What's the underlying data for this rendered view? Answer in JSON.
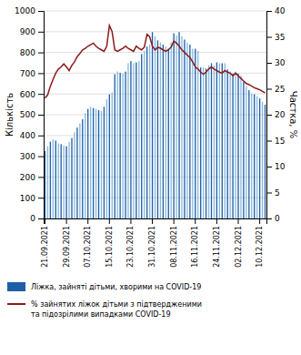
{
  "chart_data": {
    "type": "bar",
    "y_label": "Кількість",
    "y2_label": "Частка, %",
    "categories": [
      "21.09.2021",
      null,
      null,
      null,
      null,
      null,
      null,
      null,
      "29.09.2021",
      null,
      null,
      null,
      null,
      null,
      null,
      null,
      "07.10.2021",
      null,
      null,
      null,
      null,
      null,
      null,
      null,
      "15.10.2021",
      null,
      null,
      null,
      null,
      null,
      null,
      null,
      "23.10.2021",
      null,
      null,
      null,
      null,
      null,
      null,
      null,
      "31.10.2021",
      null,
      null,
      null,
      null,
      null,
      null,
      null,
      "08.11.2021",
      null,
      null,
      null,
      null,
      null,
      null,
      null,
      "16.11.2021",
      null,
      null,
      null,
      null,
      null,
      null,
      null,
      "24.11.2021",
      null,
      null,
      null,
      null,
      null,
      null,
      null,
      "02.12.2021",
      null,
      null,
      null,
      null,
      null,
      null,
      null,
      "10.12.2021",
      null,
      null
    ],
    "series": [
      {
        "name": "Ліжка, зайняті дітьми, хворими на COVID-19",
        "type": "bar",
        "colors": [
          "#1f5fa6",
          "#89b8e0",
          "#1f5fa6",
          "#89b8e0",
          "#1f5fa6",
          "#89b8e0",
          "#1f5fa6",
          "#89b8e0",
          "#1f5fa6",
          "#89b8e0",
          "#1f5fa6",
          "#89b8e0",
          "#1f5fa6",
          "#89b8e0",
          "#1f5fa6",
          "#89b8e0",
          "#1f5fa6",
          "#89b8e0",
          "#1f5fa6",
          "#89b8e0",
          "#1f5fa6",
          "#89b8e0",
          "#1f5fa6",
          "#89b8e0",
          "#1f5fa6",
          "#89b8e0",
          "#1f5fa6",
          "#89b8e0",
          "#1f5fa6",
          "#89b8e0",
          "#1f5fa6",
          "#89b8e0",
          "#1f5fa6",
          "#89b8e0",
          "#1f5fa6",
          "#89b8e0",
          "#1f5fa6",
          "#89b8e0",
          "#1f5fa6",
          "#89b8e0",
          "#1f5fa6",
          "#89b8e0",
          "#1f5fa6",
          "#89b8e0",
          "#1f5fa6",
          "#89b8e0",
          "#1f5fa6",
          "#89b8e0",
          "#1f5fa6",
          "#89b8e0",
          "#1f5fa6",
          "#89b8e0",
          "#1f5fa6",
          "#89b8e0",
          "#1f5fa6",
          "#89b8e0",
          "#1f5fa6",
          "#89b8e0",
          "#1f5fa6",
          "#89b8e0",
          "#1f5fa6",
          "#89b8e0",
          "#1f5fa6",
          "#89b8e0",
          "#1f5fa6",
          "#89b8e0",
          "#1f5fa6",
          "#89b8e0",
          "#1f5fa6",
          "#89b8e0",
          "#1f5fa6",
          "#89b8e0",
          "#1f5fa6",
          "#89b8e0",
          "#1f5fa6",
          "#89b8e0",
          "#1f5fa6",
          "#89b8e0",
          "#1f5fa6",
          "#89b8e0",
          "#1f5fa6",
          "#89b8e0",
          "#1f5fa6"
        ],
        "values": [
          325,
          348,
          370,
          382,
          375,
          362,
          358,
          352,
          348,
          368,
          388,
          415,
          438,
          458,
          478,
          508,
          528,
          538,
          532,
          528,
          522,
          518,
          538,
          575,
          598,
          608,
          695,
          708,
          702,
          698,
          708,
          748,
          758,
          748,
          752,
          758,
          792,
          808,
          828,
          838,
          898,
          878,
          858,
          848,
          838,
          828,
          818,
          848,
          892,
          882,
          898,
          878,
          862,
          848,
          838,
          818,
          818,
          808,
          728,
          728,
          722,
          738,
          748,
          738,
          752,
          748,
          748,
          748,
          718,
          708,
          698,
          708,
          698,
          688,
          658,
          638,
          618,
          602,
          598,
          588,
          578,
          562,
          548
        ]
      },
      {
        "name": "% зайнятих ліжок дітьми з підтвердженими\nта підозрілими випадками COVID-19",
        "type": "line",
        "axis": "y2",
        "color": "#8b1a1a",
        "values": [
          23.2,
          23.8,
          25.5,
          26.8,
          28.0,
          28.8,
          29.2,
          29.8,
          29.2,
          28.5,
          29.5,
          30.2,
          31.2,
          31.8,
          32.5,
          32.8,
          33.2,
          33.5,
          33.8,
          33.2,
          32.8,
          32.5,
          32.2,
          33.2,
          37.2,
          36.0,
          32.5,
          32.2,
          32.5,
          32.8,
          33.2,
          32.8,
          32.5,
          32.2,
          33.2,
          32.8,
          32.5,
          33.0,
          35.5,
          35.0,
          33.2,
          32.5,
          33.0,
          32.8,
          32.5,
          32.2,
          32.5,
          33.0,
          34.2,
          33.8,
          33.2,
          32.5,
          32.0,
          31.5,
          31.0,
          30.2,
          29.2,
          28.8,
          28.2,
          27.8,
          28.2,
          28.8,
          29.2,
          28.8,
          28.5,
          28.2,
          28.0,
          28.5,
          28.2,
          28.0,
          27.5,
          28.0,
          27.5,
          27.0,
          26.5,
          26.0,
          25.8,
          25.5,
          25.2,
          25.0,
          24.8,
          24.5,
          24.2
        ]
      }
    ],
    "ylim": [
      0,
      1000
    ],
    "yticks": [
      0,
      100,
      200,
      300,
      400,
      500,
      600,
      700,
      800,
      900,
      1000
    ],
    "y2lim": [
      0,
      40
    ],
    "y2ticks": [
      0,
      5,
      10,
      15,
      20,
      25,
      30,
      35,
      40
    ],
    "grid": true,
    "legend": "bottom"
  }
}
